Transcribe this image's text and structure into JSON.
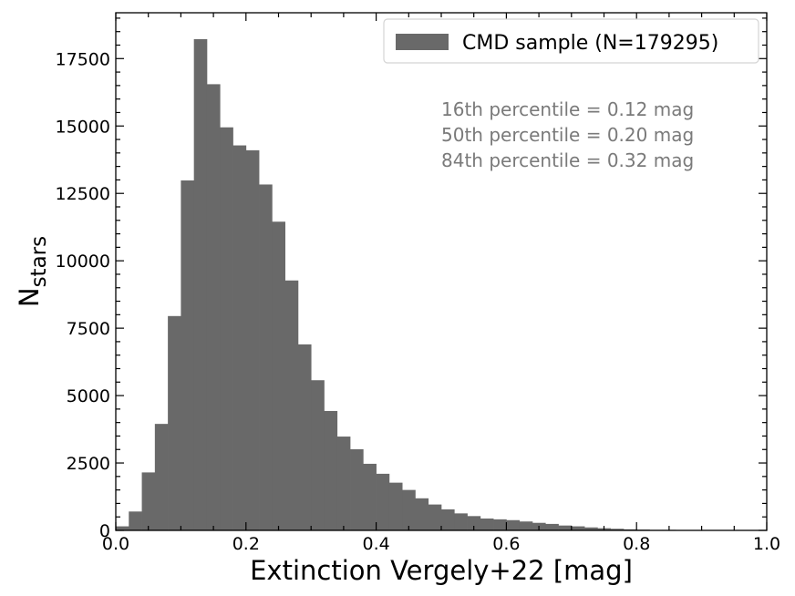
{
  "chart_data": {
    "type": "bar",
    "subtype": "histogram",
    "xlabel": "Extinction Vergely+22 [mag]",
    "ylabel_main": "N",
    "ylabel_sub": "stars",
    "xlim": [
      0.0,
      1.0
    ],
    "ylim": [
      0,
      19200
    ],
    "xticks": [
      0.0,
      0.2,
      0.4,
      0.6,
      0.8,
      1.0
    ],
    "xtick_labels": [
      "0.0",
      "0.2",
      "0.4",
      "0.6",
      "0.8",
      "1.0"
    ],
    "yticks": [
      0,
      2500,
      5000,
      7500,
      10000,
      12500,
      15000,
      17500
    ],
    "ytick_labels": [
      "0",
      "2500",
      "5000",
      "7500",
      "10000",
      "12500",
      "15000",
      "17500"
    ],
    "bin_start": 0.0,
    "bin_width": 0.02,
    "values": [
      150,
      700,
      2150,
      3950,
      7950,
      12980,
      18220,
      16550,
      14950,
      14280,
      14100,
      12830,
      11450,
      9270,
      6900,
      5570,
      4430,
      3480,
      3010,
      2470,
      2100,
      1770,
      1500,
      1190,
      960,
      780,
      630,
      530,
      440,
      410,
      380,
      330,
      280,
      240,
      180,
      150,
      110,
      80,
      60,
      40,
      30,
      20,
      20,
      10,
      10,
      10,
      5,
      5,
      5,
      5
    ],
    "bar_color": "#696969",
    "legend": {
      "label": "CMD sample (N=179295)",
      "position": "upper right"
    },
    "annotations": [
      "16th percentile = 0.12 mag",
      "50th percentile = 0.20 mag",
      "84th percentile = 0.32 mag"
    ],
    "annotation_color": "#7a7a7a",
    "grid": false
  }
}
